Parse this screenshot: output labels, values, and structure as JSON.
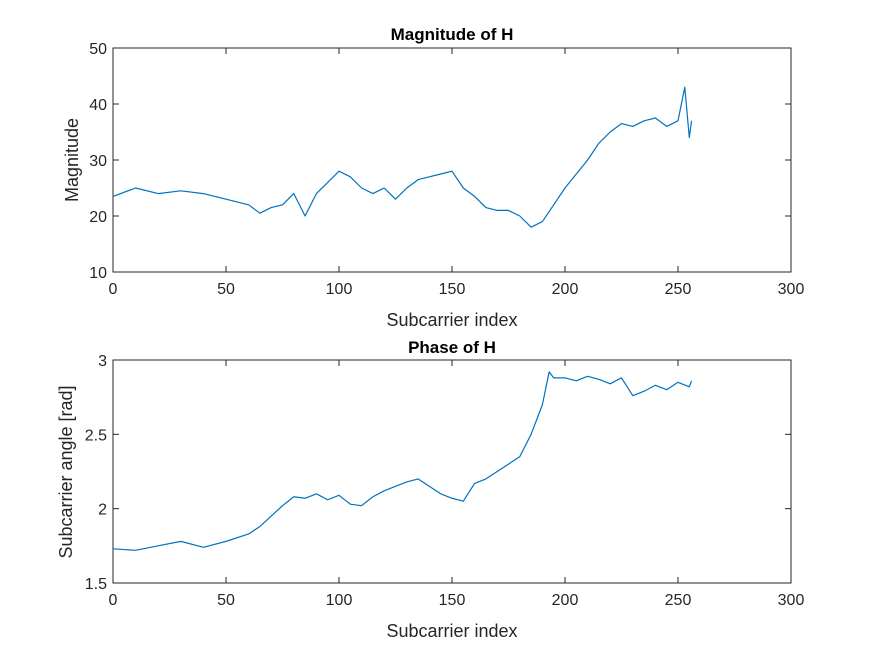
{
  "chart_data": [
    {
      "type": "line",
      "title": "Magnitude of H",
      "xlabel": "Subcarrier index",
      "ylabel": "Magnitude",
      "xlim": [
        0,
        300
      ],
      "ylim": [
        10,
        50
      ],
      "xticks": [
        0,
        50,
        100,
        150,
        200,
        250,
        300
      ],
      "yticks": [
        10,
        20,
        30,
        40,
        50
      ],
      "grid": false,
      "color": "#0072BD",
      "series": [
        {
          "x": [
            0,
            10,
            20,
            30,
            40,
            50,
            60,
            65,
            70,
            75,
            80,
            85,
            90,
            95,
            100,
            105,
            110,
            115,
            120,
            125,
            130,
            135,
            140,
            145,
            150,
            155,
            160,
            165,
            170,
            175,
            180,
            185,
            190,
            195,
            200,
            205,
            210,
            215,
            220,
            225,
            230,
            235,
            240,
            245,
            250,
            253,
            255,
            256
          ],
          "y": [
            23.5,
            25,
            24,
            24.5,
            24,
            23,
            22,
            20.5,
            21.5,
            22,
            24,
            20,
            24,
            26,
            28,
            27,
            25,
            24,
            25,
            23,
            25,
            26.5,
            27,
            27.5,
            28,
            25,
            23.5,
            21.5,
            21,
            21,
            20,
            18,
            19,
            22,
            25,
            27.5,
            30,
            33,
            35,
            36.5,
            36,
            37,
            37.5,
            36,
            37,
            43,
            34,
            37
          ]
        }
      ]
    },
    {
      "type": "line",
      "title": "Phase of H",
      "xlabel": "Subcarrier index",
      "ylabel": "Subcarrier angle [rad]",
      "xlim": [
        0,
        300
      ],
      "ylim": [
        1.5,
        3
      ],
      "xticks": [
        0,
        50,
        100,
        150,
        200,
        250,
        300
      ],
      "yticks": [
        1.5,
        2,
        2.5,
        3
      ],
      "ytick_labels": [
        "1.5",
        "2",
        "2.5",
        "3"
      ],
      "grid": false,
      "color": "#0072BD",
      "series": [
        {
          "x": [
            0,
            10,
            20,
            30,
            40,
            50,
            60,
            65,
            70,
            75,
            80,
            85,
            90,
            95,
            100,
            105,
            110,
            115,
            120,
            125,
            130,
            135,
            140,
            145,
            150,
            155,
            160,
            165,
            170,
            175,
            180,
            185,
            190,
            193,
            195,
            200,
            205,
            210,
            215,
            220,
            225,
            230,
            235,
            240,
            245,
            250,
            255,
            256
          ],
          "y": [
            1.73,
            1.72,
            1.75,
            1.78,
            1.74,
            1.78,
            1.83,
            1.88,
            1.95,
            2.02,
            2.08,
            2.07,
            2.1,
            2.06,
            2.09,
            2.03,
            2.02,
            2.08,
            2.12,
            2.15,
            2.18,
            2.2,
            2.15,
            2.1,
            2.07,
            2.05,
            2.17,
            2.2,
            2.25,
            2.3,
            2.35,
            2.5,
            2.7,
            2.92,
            2.88,
            2.88,
            2.86,
            2.89,
            2.87,
            2.84,
            2.88,
            2.76,
            2.79,
            2.83,
            2.8,
            2.85,
            2.82,
            2.86
          ]
        }
      ]
    }
  ]
}
